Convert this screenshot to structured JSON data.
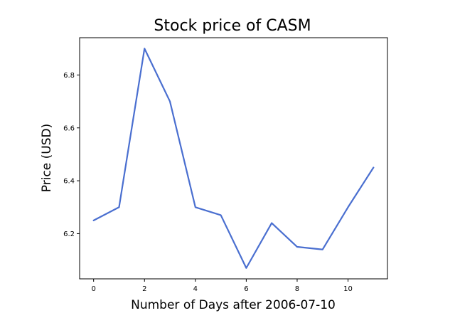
{
  "chart_data": {
    "type": "line",
    "title": "Stock price of CASM",
    "xlabel": "Number of Days after 2006-07-10",
    "ylabel": "Price (USD)",
    "x": [
      0,
      1,
      2,
      3,
      4,
      5,
      6,
      7,
      8,
      9,
      10,
      11
    ],
    "series": [
      {
        "values": [
          6.25,
          6.3,
          6.9,
          6.7,
          6.3,
          6.27,
          6.07,
          6.24,
          6.15,
          6.14,
          6.3,
          6.45
        ],
        "color": "#4a6fd0"
      }
    ],
    "xlim": [
      -0.55,
      11.55
    ],
    "ylim": [
      6.029,
      6.941
    ],
    "xticks": [
      0,
      2,
      4,
      6,
      8,
      10
    ],
    "yticks": [
      6.2,
      6.4,
      6.6,
      6.8
    ],
    "xtick_labels": [
      "0",
      "2",
      "4",
      "6",
      "8",
      "10"
    ],
    "ytick_labels": [
      "6.2",
      "6.4",
      "6.6",
      "6.8"
    ],
    "grid": false,
    "legend": "none"
  }
}
